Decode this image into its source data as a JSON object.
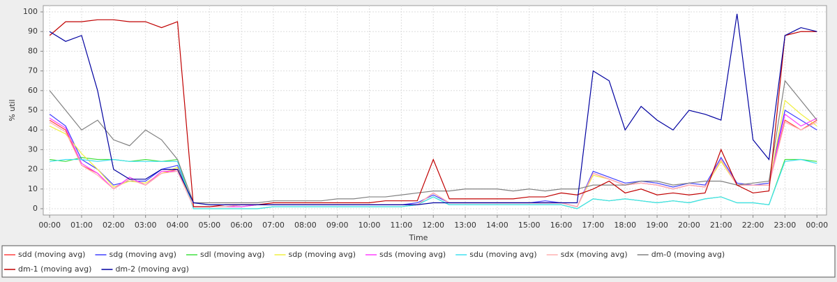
{
  "chart_data": {
    "type": "line",
    "x_label": "Time",
    "y_label": "% util",
    "xlim": [
      -0.2,
      24.3
    ],
    "ylim": [
      -3.2,
      103.2
    ],
    "grid": true,
    "legend_position": "bottom",
    "yticks": [
      0,
      10,
      20,
      30,
      40,
      50,
      60,
      70,
      80,
      90,
      100
    ],
    "xticks": [
      {
        "value": 0,
        "label": "00:00"
      },
      {
        "value": 1,
        "label": "01:00"
      },
      {
        "value": 2,
        "label": "02:00"
      },
      {
        "value": 3,
        "label": "03:00"
      },
      {
        "value": 4,
        "label": "04:00"
      },
      {
        "value": 5,
        "label": "05:00"
      },
      {
        "value": 6,
        "label": "06:00"
      },
      {
        "value": 7,
        "label": "07:00"
      },
      {
        "value": 8,
        "label": "08:00"
      },
      {
        "value": 9,
        "label": "09:00"
      },
      {
        "value": 10,
        "label": "10:00"
      },
      {
        "value": 11,
        "label": "11:00"
      },
      {
        "value": 12,
        "label": "12:00"
      },
      {
        "value": 13,
        "label": "13:00"
      },
      {
        "value": 14,
        "label": "14:00"
      },
      {
        "value": 15,
        "label": "15:00"
      },
      {
        "value": 16,
        "label": "16:00"
      },
      {
        "value": 17,
        "label": "17:00"
      },
      {
        "value": 18,
        "label": "18:00"
      },
      {
        "value": 19,
        "label": "19:00"
      },
      {
        "value": 20,
        "label": "20:00"
      },
      {
        "value": 21,
        "label": "21:00"
      },
      {
        "value": 22,
        "label": "22:00"
      },
      {
        "value": 23,
        "label": "23:00"
      },
      {
        "value": 24,
        "label": "00:00"
      }
    ],
    "x": [
      0,
      0.5,
      1,
      1.5,
      2,
      2.5,
      3,
      3.5,
      4,
      4.5,
      5,
      5.5,
      6,
      6.5,
      7,
      7.5,
      8,
      8.5,
      9,
      9.5,
      10,
      10.5,
      11,
      11.5,
      12,
      12.5,
      13,
      13.5,
      14,
      14.5,
      15,
      15.5,
      16,
      16.5,
      17,
      17.5,
      18,
      18.5,
      19,
      19.5,
      20,
      20.5,
      21,
      21.5,
      22,
      22.5,
      23,
      23.5,
      24
    ],
    "series": [
      {
        "name": "sdd (moving avg)",
        "color": "#ff4040",
        "values": [
          45,
          40,
          22,
          18,
          10,
          15,
          12,
          18,
          20,
          1,
          1,
          1,
          2,
          2,
          2,
          2,
          2,
          2,
          2,
          2,
          2,
          2,
          2,
          2,
          8,
          3,
          3,
          3,
          3,
          3,
          3,
          3,
          3,
          1,
          18,
          15,
          12,
          13,
          12,
          10,
          12,
          11,
          25,
          12,
          12,
          12,
          45,
          40,
          45
        ]
      },
      {
        "name": "sdg (moving avg)",
        "color": "#4040ff",
        "values": [
          48,
          42,
          25,
          20,
          12,
          14,
          14,
          20,
          22,
          1,
          1,
          1,
          1,
          2,
          2,
          2,
          2,
          2,
          2,
          2,
          2,
          2,
          2,
          3,
          7,
          3,
          3,
          3,
          3,
          3,
          3,
          4,
          3,
          1,
          19,
          16,
          13,
          14,
          13,
          11,
          13,
          12,
          26,
          13,
          12,
          13,
          50,
          45,
          40
        ]
      },
      {
        "name": "sdl (moving avg)",
        "color": "#40e040",
        "values": [
          25,
          24,
          26,
          25,
          25,
          24,
          25,
          24,
          25,
          0,
          0,
          0,
          0,
          0,
          1,
          1,
          1,
          1,
          1,
          1,
          1,
          1,
          1,
          2,
          6,
          2,
          2,
          2,
          2,
          2,
          2,
          2,
          2,
          0,
          5,
          4,
          5,
          4,
          3,
          4,
          3,
          5,
          6,
          3,
          3,
          2,
          25,
          25,
          24
        ]
      },
      {
        "name": "sdp (moving avg)",
        "color": "#f0f040",
        "values": [
          42,
          38,
          28,
          20,
          11,
          14,
          13,
          18,
          21,
          1,
          1,
          1,
          1,
          2,
          2,
          2,
          2,
          2,
          2,
          2,
          2,
          2,
          2,
          2,
          8,
          3,
          3,
          3,
          3,
          3,
          3,
          3,
          3,
          1,
          17,
          15,
          12,
          13,
          12,
          10,
          12,
          11,
          24,
          12,
          12,
          12,
          55,
          48,
          42
        ]
      },
      {
        "name": "sds (moving avg)",
        "color": "#ff40ff",
        "values": [
          46,
          41,
          23,
          18,
          10,
          16,
          12,
          19,
          19,
          1,
          1,
          1,
          1,
          2,
          2,
          2,
          2,
          2,
          2,
          2,
          2,
          2,
          2,
          2,
          8,
          3,
          3,
          3,
          3,
          3,
          3,
          3,
          3,
          1,
          18,
          15,
          12,
          13,
          12,
          10,
          12,
          11,
          25,
          12,
          12,
          12,
          48,
          42,
          46
        ]
      },
      {
        "name": "sdu (moving avg)",
        "color": "#40e0f0",
        "values": [
          24,
          25,
          25,
          24,
          25,
          24,
          24,
          24,
          24,
          0,
          0,
          0,
          0,
          0,
          1,
          1,
          1,
          1,
          1,
          1,
          1,
          1,
          1,
          2,
          6,
          2,
          2,
          2,
          2,
          2,
          2,
          2,
          2,
          0,
          5,
          4,
          5,
          4,
          3,
          4,
          3,
          5,
          6,
          3,
          3,
          2,
          24,
          25,
          23
        ]
      },
      {
        "name": "sdx (moving avg)",
        "color": "#ffb0b0",
        "values": [
          44,
          39,
          22,
          17,
          10,
          15,
          12,
          18,
          19,
          1,
          1,
          1,
          2,
          2,
          2,
          2,
          2,
          2,
          2,
          2,
          2,
          2,
          2,
          2,
          8,
          3,
          3,
          3,
          3,
          3,
          3,
          3,
          3,
          1,
          18,
          15,
          12,
          13,
          12,
          10,
          12,
          11,
          25,
          12,
          12,
          12,
          44,
          40,
          44
        ]
      },
      {
        "name": "dm-0 (moving avg)",
        "color": "#808080",
        "values": [
          60,
          50,
          40,
          45,
          35,
          32,
          40,
          35,
          25,
          3,
          3,
          3,
          3,
          3,
          4,
          4,
          4,
          4,
          5,
          5,
          6,
          6,
          7,
          8,
          9,
          9,
          10,
          10,
          10,
          9,
          10,
          9,
          10,
          10,
          12,
          12,
          12,
          14,
          14,
          12,
          13,
          14,
          14,
          12,
          13,
          14,
          65,
          55,
          45
        ]
      },
      {
        "name": "dm-1 (moving avg)",
        "color": "#c00000",
        "values": [
          88,
          95,
          95,
          96,
          96,
          95,
          95,
          92,
          95,
          1,
          1,
          2,
          2,
          2,
          3,
          3,
          3,
          3,
          3,
          3,
          3,
          4,
          4,
          4,
          25,
          5,
          5,
          5,
          5,
          5,
          6,
          6,
          8,
          7,
          10,
          14,
          8,
          10,
          7,
          8,
          7,
          8,
          30,
          12,
          8,
          9,
          88,
          90,
          90
        ]
      },
      {
        "name": "dm-2 (moving avg)",
        "color": "#0000a0",
        "values": [
          90,
          85,
          88,
          60,
          20,
          15,
          15,
          20,
          20,
          3,
          2,
          2,
          2,
          2,
          2,
          2,
          2,
          2,
          2,
          2,
          2,
          2,
          2,
          2,
          3,
          3,
          3,
          3,
          3,
          3,
          3,
          3,
          3,
          3,
          70,
          65,
          40,
          52,
          45,
          40,
          50,
          48,
          45,
          99,
          35,
          25,
          88,
          92,
          90
        ]
      }
    ]
  }
}
